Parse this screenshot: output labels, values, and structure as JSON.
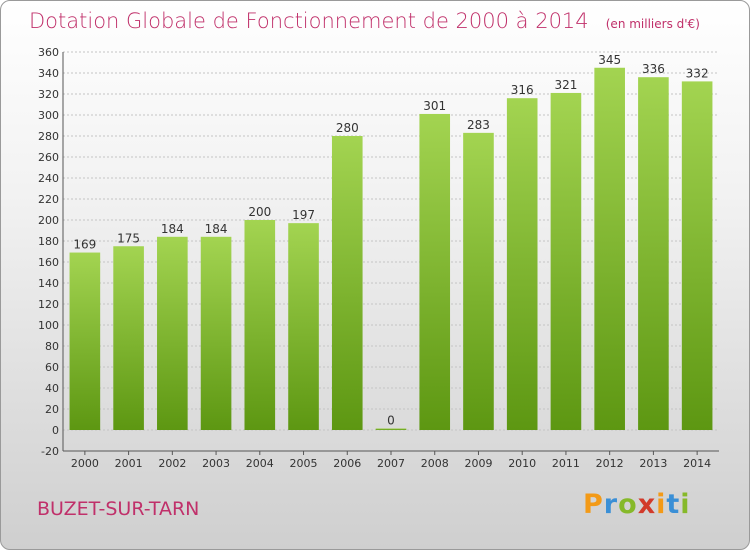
{
  "title": "Dotation Globale de Fonctionnement de 2000 à 2014",
  "unit_note": "(en milliers d'€)",
  "commune": "BUZET-SUR-TARN",
  "logo": {
    "letters": [
      "P",
      "r",
      "o",
      "x",
      "i",
      "t",
      "i"
    ],
    "colors": [
      "#f39a17",
      "#3a8fd6",
      "#86b92a",
      "#d23a2a",
      "#f39a17",
      "#3a8fd6",
      "#86b92a"
    ]
  },
  "colors": {
    "title": "#c0306a",
    "bar_top": "#a3d451",
    "bar_bottom": "#5d9712",
    "grid": "#c4c4c4"
  },
  "chart_data": {
    "type": "bar",
    "categories": [
      "2000",
      "2001",
      "2002",
      "2003",
      "2004",
      "2005",
      "2006",
      "2007",
      "2008",
      "2009",
      "2010",
      "2011",
      "2012",
      "2013",
      "2014"
    ],
    "values": [
      169,
      175,
      184,
      184,
      200,
      197,
      280,
      0,
      301,
      283,
      316,
      321,
      345,
      336,
      332
    ],
    "ylim": [
      -20,
      360
    ],
    "yticks": [
      -20,
      0,
      20,
      40,
      60,
      80,
      100,
      120,
      140,
      160,
      180,
      200,
      220,
      240,
      260,
      280,
      300,
      320,
      340,
      360
    ],
    "grid": true,
    "xlabel": "",
    "ylabel": ""
  }
}
